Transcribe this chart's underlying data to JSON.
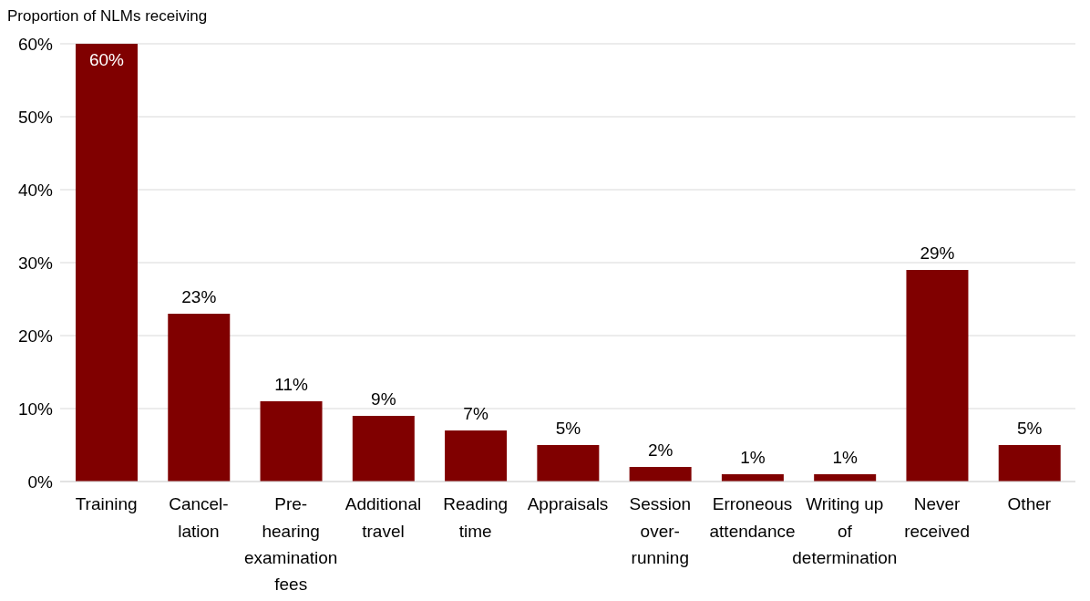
{
  "chart_data": {
    "type": "bar",
    "ylabel": "Proportion of NLMs receiving",
    "categories": [
      "Training",
      "Cancel-lation",
      "Pre-hearing examination fees",
      "Additional travel",
      "Reading time",
      "Appraisals",
      "Session over-running",
      "Erroneous attendance",
      "Writing up of determination",
      "Never received",
      "Other"
    ],
    "values": [
      60,
      23,
      11,
      9,
      7,
      5,
      2,
      1,
      1,
      29,
      5
    ],
    "value_labels": [
      "60%",
      "23%",
      "11%",
      "9%",
      "7%",
      "5%",
      "2%",
      "1%",
      "1%",
      "29%",
      "5%"
    ],
    "color": "#800000",
    "ylim": [
      0,
      60
    ],
    "yticks": [
      {
        "value": 0,
        "label": "0%"
      },
      {
        "value": 10,
        "label": "10%"
      },
      {
        "value": 20,
        "label": "20%"
      },
      {
        "value": 30,
        "label": "30%"
      },
      {
        "value": 40,
        "label": "40%"
      },
      {
        "value": 50,
        "label": "50%"
      },
      {
        "value": 60,
        "label": "60%"
      }
    ],
    "grid": "y"
  }
}
